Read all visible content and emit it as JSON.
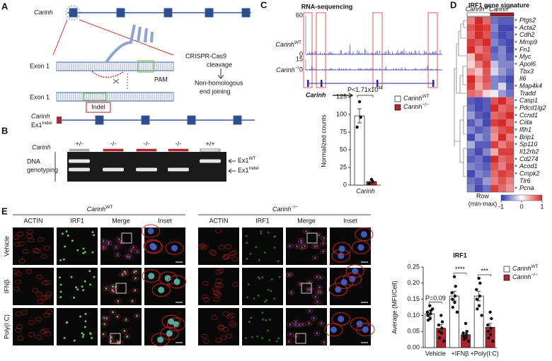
{
  "panel_labels": [
    "A",
    "B",
    "C",
    "D",
    "E"
  ],
  "panel_a": {
    "gene": "Carinh",
    "exon_top": "Exon 1",
    "pam": "PAM",
    "cas9": "CRISPR-Cas9",
    "cleavage": "cleavage",
    "nhej_1": "Non-homologous",
    "nhej_2": "end joining",
    "exon_bottom": "Exon 1",
    "indel": "Indel",
    "allele_gene": "Carinh",
    "allele": {
      "base": "Ex1",
      "sup": "Indel"
    }
  },
  "panel_b": {
    "gene": "Carinh",
    "genotypes": [
      "+/-",
      "-/-",
      "-/-",
      "-/-",
      "+/+"
    ],
    "row_label_1": "DNA",
    "row_label_2": "genotyping",
    "bands": [
      {
        "base": "Ex1",
        "sup": "WT"
      },
      {
        "base": "Ex1",
        "sup": "Indel"
      }
    ]
  },
  "panel_c": {
    "title": "RNA-sequencing",
    "gene": "Carinh",
    "tracks": [
      {
        "label": {
          "base": "Carinh",
          "sup": "WT"
        },
        "max": 60,
        "min": 0
      },
      {
        "label": {
          "base": "Carinh",
          "sup": "−/−"
        },
        "max": 15,
        "min": 0
      }
    ]
  },
  "panel_e": {
    "groups": [
      {
        "base": "Carinh",
        "sup": "WT"
      },
      {
        "base": "Carinh",
        "sup": "−/−"
      }
    ],
    "channels": [
      "ACTIN",
      "IRF1",
      "Merge",
      "Inset"
    ],
    "conditions": [
      "Vehicle",
      "IFNβ",
      "Poly(I:C)"
    ]
  },
  "chart_data": [
    {
      "type": "bar",
      "ylabel": "Normalized counts",
      "categories": [
        "Carinh"
      ],
      "series": [
        {
          "name": {
            "base": "Carinh",
            "sup": "WT"
          },
          "color": "#ffffff",
          "values": [
            98
          ],
          "errors": [
            10
          ],
          "points": [
            [
              118,
              96,
              82
            ]
          ]
        },
        {
          "name": {
            "base": "Carinh",
            "sup": "−/−"
          },
          "color": "#b0252d",
          "values": [
            5
          ],
          "errors": [
            2
          ],
          "points": [
            [
              8,
              5,
              2
            ]
          ]
        }
      ],
      "ylim": [
        0,
        125
      ],
      "yticks": [
        0,
        25,
        50,
        75,
        100,
        125
      ],
      "annotation": {
        "base": "P<1.71x10",
        "sup": "11"
      }
    },
    {
      "type": "heatmap",
      "title": "IRF1 gene signature",
      "column_groups": [
        {
          "name": {
            "base": "Carinh",
            "sup": "WT"
          },
          "color": "#ffffff"
        },
        {
          "name": {
            "base": "Carinh",
            "sup": "−/−"
          },
          "color": "#a01f2a"
        }
      ],
      "rows": [
        "Ptgs2",
        "Acta2",
        "Cdh2",
        "Mmp9",
        "Fn1",
        "Myc",
        "Apol6",
        "Tbx3",
        "Il6",
        "Map4k4",
        "Tradd",
        "Casp1",
        "Pdcd1lg2",
        "Ccnd1",
        "Ciita",
        "Ifih1",
        "Brip1",
        "Sp110",
        "Il12rb2",
        "Cd274",
        "Acod1",
        "Cmpk2",
        "Tlr6",
        "Pcna"
      ],
      "starred": [
        true,
        true,
        true,
        true,
        true,
        true,
        true,
        false,
        false,
        true,
        false,
        true,
        true,
        true,
        true,
        true,
        true,
        true,
        false,
        true,
        true,
        true,
        false,
        true
      ],
      "star": "*",
      "values": [
        [
          0.6,
          1,
          0.7,
          -0.7,
          -0.8,
          -0.8
        ],
        [
          0.8,
          1,
          0.9,
          -0.6,
          -0.9,
          -0.9
        ],
        [
          0.7,
          1,
          0.8,
          -0.7,
          -0.9,
          -0.8
        ],
        [
          0.9,
          0.8,
          1,
          -0.6,
          -0.8,
          -0.9
        ],
        [
          1,
          0.6,
          0.8,
          -0.8,
          -0.6,
          -0.9
        ],
        [
          0.3,
          0.9,
          0.8,
          -0.7,
          -0.6,
          -0.8
        ],
        [
          0.2,
          0.6,
          0.9,
          -0.3,
          -0.6,
          -0.6
        ],
        [
          0.5,
          0.3,
          0.8,
          -0.2,
          -0.5,
          -0.7
        ],
        [
          1,
          0.5,
          0.8,
          -0.6,
          -0.7,
          -0.9
        ],
        [
          0.9,
          0.4,
          0.7,
          -0.6,
          -0.2,
          -0.8
        ],
        [
          0.7,
          0.6,
          0.2,
          -0.1,
          -0.5,
          -0.7
        ],
        [
          -0.8,
          -0.9,
          -0.8,
          0.8,
          1,
          0.7
        ],
        [
          -0.7,
          -0.9,
          -0.8,
          1,
          0.7,
          0.8
        ],
        [
          -0.5,
          -0.8,
          -0.9,
          0.7,
          0.8,
          1
        ],
        [
          -0.8,
          -0.6,
          -0.9,
          0.9,
          1,
          0.7
        ],
        [
          -0.6,
          -0.8,
          -0.7,
          0.6,
          0.8,
          0.9
        ],
        [
          -0.9,
          -0.5,
          -0.7,
          0.5,
          1,
          0.6
        ],
        [
          -0.4,
          -0.8,
          -0.8,
          0.9,
          0.6,
          0.8
        ],
        [
          -0.7,
          -0.9,
          -0.6,
          0.4,
          0.9,
          0.9
        ],
        [
          -0.8,
          -0.7,
          -0.9,
          1,
          0.7,
          0.8
        ],
        [
          -0.6,
          -0.7,
          -0.8,
          0.8,
          0.6,
          0.9
        ],
        [
          -0.9,
          -0.6,
          -0.7,
          0.7,
          0.9,
          0.8
        ],
        [
          -0.7,
          -0.8,
          -0.5,
          0.6,
          0.8,
          0.6
        ],
        [
          -0.6,
          -0.9,
          -0.7,
          0.9,
          0.7,
          0.5
        ]
      ],
      "zlim": [
        -1,
        1
      ],
      "zticks": [
        -1,
        0,
        1
      ],
      "colorbar_label_1": "Row",
      "colorbar_label_2": "(min-max)",
      "colors": [
        "#3035a8",
        "#ffffff",
        "#d62a2a"
      ]
    },
    {
      "type": "bar",
      "title": "IRF1",
      "ylabel": "Average (MFI/Cell)",
      "categories": [
        "Vehicle",
        "+IFNβ",
        "+Poly(I:C)"
      ],
      "series": [
        {
          "name": {
            "base": "Carinh",
            "sup": "WT"
          },
          "color": "#ffffff",
          "values": [
            0.105,
            0.16,
            0.16
          ],
          "errors": [
            0.01,
            0.015,
            0.015
          ],
          "points": [
            [
              0.13,
              0.115,
              0.11,
              0.105,
              0.1,
              0.09,
              0.085,
              0.12
            ],
            [
              0.22,
              0.19,
              0.17,
              0.16,
              0.15,
              0.14,
              0.125,
              0.11
            ],
            [
              0.215,
              0.2,
              0.18,
              0.16,
              0.15,
              0.13,
              0.12,
              0.1
            ]
          ]
        },
        {
          "name": {
            "base": "Carinh",
            "sup": "−/−"
          },
          "color": "#b0252d",
          "values": [
            0.06,
            0.04,
            0.063
          ],
          "errors": [
            0.012,
            0.006,
            0.012
          ],
          "points": [
            [
              0.1,
              0.08,
              0.07,
              0.06,
              0.05,
              0.045,
              0.03,
              0.02
            ],
            [
              0.075,
              0.05,
              0.045,
              0.04,
              0.035,
              0.03,
              0.025,
              0.02
            ],
            [
              0.11,
              0.09,
              0.07,
              0.06,
              0.05,
              0.04,
              0.03,
              0.02
            ]
          ]
        }
      ],
      "ylim": [
        0,
        0.25
      ],
      "yticks": [
        {
          "value": 0,
          "label": "0.00"
        },
        {
          "value": 0.05,
          "label": "0.05"
        },
        {
          "value": 0.1,
          "label": "0.10"
        },
        {
          "value": 0.15,
          "label": "0.15"
        },
        {
          "value": 0.2,
          "label": "0.20"
        },
        {
          "value": 0.25,
          "label": "0.25"
        }
      ],
      "annotations": [
        {
          "category": 0,
          "text": "P=0.09"
        },
        {
          "category": 1,
          "text": "****"
        },
        {
          "category": 2,
          "text": "***"
        }
      ]
    }
  ]
}
